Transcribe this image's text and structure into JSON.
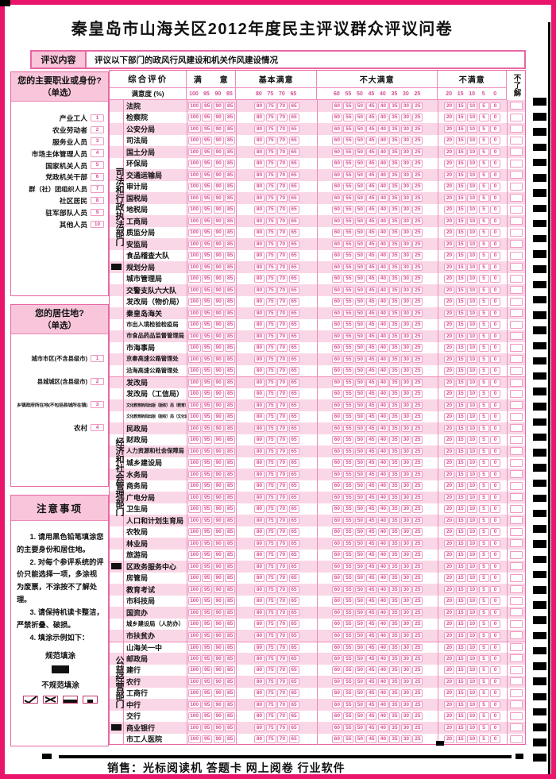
{
  "page": {
    "title": "秦皇岛市山海关区2012年度民主评议群众评议问卷",
    "footer": "销售：光标阅读机 答题卡 网上阅卷 行业软件"
  },
  "review": {
    "label": "评议内容",
    "content": "评议以下部门的政风行风建设和机关作风建设情况"
  },
  "sidebar": {
    "occupation": {
      "title": "您的主要职业或身份?",
      "subtitle": "（单选）",
      "options": [
        {
          "label": "产业工人",
          "num": "1"
        },
        {
          "label": "农业劳动者",
          "num": "2"
        },
        {
          "label": "服务业人员",
          "num": "3"
        },
        {
          "label": "市场主体管理人员",
          "num": "4"
        },
        {
          "label": "国家机关人员",
          "num": "5"
        },
        {
          "label": "党政机关干部",
          "num": "6"
        },
        {
          "label": "群（社）团组织人员",
          "num": "7"
        },
        {
          "label": "社区居民",
          "num": "8"
        },
        {
          "label": "驻军部队人员",
          "num": "9"
        },
        {
          "label": "其他人员",
          "num": "10"
        }
      ]
    },
    "residence": {
      "title": "您的居住地?",
      "subtitle": "（单选）",
      "options": [
        {
          "label": "城市市区(不含县级市)",
          "num": "1"
        },
        {
          "label": "县城城区(含县级市)",
          "num": "2"
        },
        {
          "label": "乡镇政府所在地(不包括县城所在镇)",
          "num": "3"
        },
        {
          "label": "农村",
          "num": "4"
        }
      ]
    },
    "notes": {
      "title": "注意事项",
      "items": [
        "1. 请用黑色铅笔填涂您的主要身份和居住地。",
        "2. 对每个参评系统的评价只能选择一项，多涂视为废票，不涂按不了解处理。",
        "3. 请保持机读卡整洁，严禁折叠、破损。",
        "4. 填涂示例如下："
      ],
      "good_label": "规范填涂",
      "bad_label": "不规范填涂"
    }
  },
  "table": {
    "header": {
      "eval_label": "综合评价",
      "satisfaction_label": "满意度 (%)",
      "unknown_label": "不了解",
      "groups": [
        {
          "label": "满　　意",
          "values": [
            "100",
            "95",
            "90",
            "85"
          ]
        },
        {
          "label": "基本满意",
          "values": [
            "80",
            "75",
            "70",
            "65"
          ]
        },
        {
          "label": "不大满意",
          "values": [
            "60",
            "55",
            "50",
            "45",
            "40",
            "35",
            "30",
            "25"
          ]
        },
        {
          "label": "不满意",
          "values": [
            "20",
            "15",
            "10",
            "5",
            "0"
          ]
        }
      ]
    },
    "sections": [
      {
        "name": "司法和行政执法部门",
        "departments": [
          "法院",
          "检察院",
          "公安分局",
          "司法局",
          "国土分局",
          "环保局",
          "交通运输局",
          "审计局",
          "国税局",
          "地税局",
          "工商局",
          "质监分局",
          "安监局",
          "食品稽查大队",
          "规划分局",
          "城市管理局",
          "交警支队六大队",
          "发改局（物价局）",
          "秦皇岛海关",
          "市出入境检验检疫局",
          "市食品药品监督管理局",
          "市海事局",
          "京秦高速公路管理处",
          "沿海高速公路管理处"
        ]
      },
      {
        "name": "经济和社会管理部门",
        "departments": [
          "发改局",
          "发改局（工信局）",
          "文化教育新闻出版（版权）局（教育）",
          "文化教育新闻出版（版权）局（文化体育）",
          "民政局",
          "财政局",
          "人力资源和社会保障局",
          "城乡建设局",
          "水务局",
          "商务局",
          "广电分局",
          "卫生局",
          "人口和计划生育局",
          "农牧局",
          "林业局",
          "旅游局",
          "区政务服务中心",
          "房管局",
          "教育考试",
          "市科技局",
          "国资办",
          "城乡建设局（人防办）",
          "市扶贫办"
        ]
      },
      {
        "name": "公益经营部门",
        "departments": [
          "山海关一中",
          "邮政局",
          "建行",
          "农行",
          "工商行",
          "中行",
          "交行",
          "商业银行",
          "市工人医院"
        ]
      }
    ]
  },
  "colors": {
    "frame": "#e8156b",
    "hbg": "#f8c5da",
    "rowpink": "#fad7e7",
    "ink": "#d64f96",
    "grid": "#ee8ab8",
    "gridd": "#e867a3",
    "bub": "#f09ac2"
  }
}
